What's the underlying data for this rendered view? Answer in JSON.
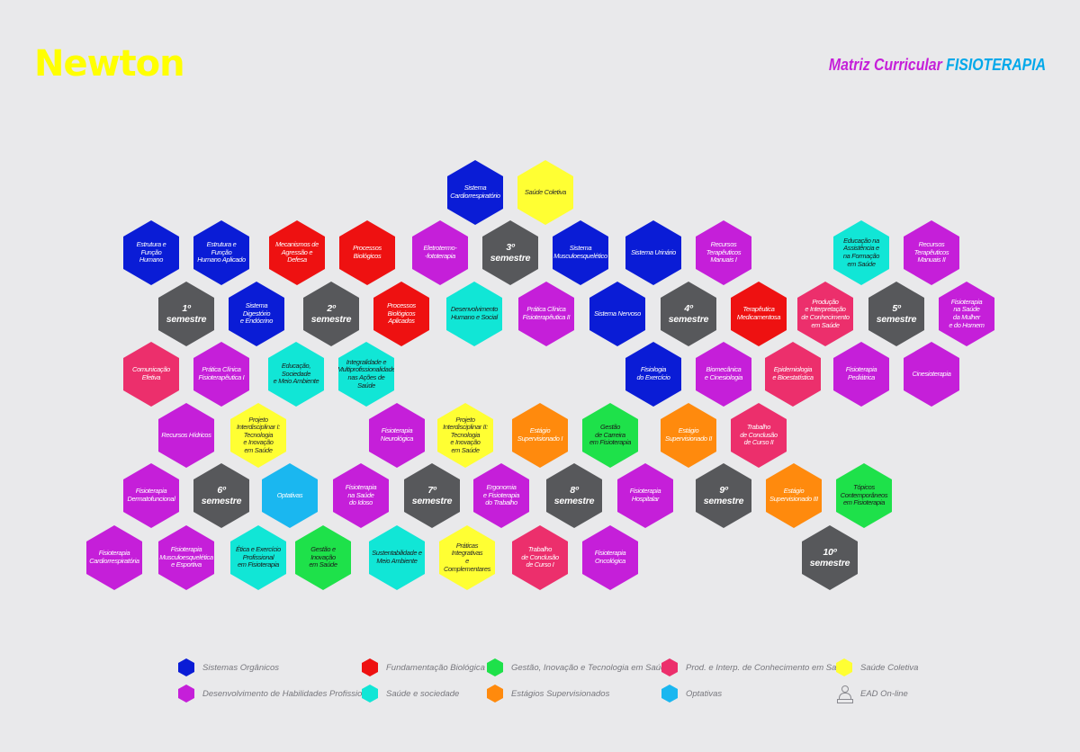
{
  "header": {
    "logo": "Newton",
    "title_prefix": "Matriz Curricular",
    "title_course": "FISIOTERAPIA"
  },
  "colors": {
    "organicos": "#0a1cd6",
    "fundamentacao": "#ee1111",
    "gestao": "#1ee14a",
    "producao": "#ec2f6c",
    "coletiva": "#ffff33",
    "habilidades": "#c51fd9",
    "sociedade": "#11e6d6",
    "estagios": "#ff8a0d",
    "optativas": "#1ab7f0",
    "semestre": "#57585b"
  },
  "hexes": [
    {
      "label": "Sistema\nCardiorrespiratório",
      "cat": "organicos",
      "sem": false
    },
    {
      "label": "Saúde Coletiva",
      "cat": "coletiva",
      "sem": false
    },
    {
      "label": "Estrutura e Função\nHumano",
      "cat": "organicos",
      "sem": false
    },
    {
      "label": "Estrutura e Função\nHumano Aplicado",
      "cat": "organicos",
      "sem": false
    },
    {
      "label": "Mecanismos de\nAgressão e Defesa",
      "cat": "fundamentacao",
      "sem": false
    },
    {
      "label": "Processos Biológicos",
      "cat": "fundamentacao",
      "sem": false
    },
    {
      "label": "Eletrotermo-\n-fototerapia",
      "cat": "habilidades",
      "sem": false
    },
    {
      "label": "3º semestre",
      "cat": "semestre",
      "sem": true
    },
    {
      "label": "Sistema\nMusculoesquelético",
      "cat": "organicos",
      "sem": false
    },
    {
      "label": "Sistema Urinário",
      "cat": "organicos",
      "sem": false
    },
    {
      "label": "Recursos\nTerapêuticos\nManuais I",
      "cat": "habilidades",
      "sem": false
    },
    {
      "label": "Educação na\nAssistência e\nna Formação\nem Saúde",
      "cat": "sociedade",
      "sem": false
    },
    {
      "label": "Recursos\nTerapêuticos\nManuais II",
      "cat": "habilidades",
      "sem": false
    },
    {
      "label": "1º semestre",
      "cat": "semestre",
      "sem": true
    },
    {
      "label": "Sistema Digestório\ne Endócrino",
      "cat": "organicos",
      "sem": false
    },
    {
      "label": "2º semestre",
      "cat": "semestre",
      "sem": true
    },
    {
      "label": "Processos Biológicos\nAplicados",
      "cat": "fundamentacao",
      "sem": false
    },
    {
      "label": "Desenvolvimento\nHumano e Social",
      "cat": "sociedade",
      "sem": false
    },
    {
      "label": "Prática Clínica\nFisioterapêutica II",
      "cat": "habilidades",
      "sem": false
    },
    {
      "label": "Sistema Nervoso",
      "cat": "organicos",
      "sem": false
    },
    {
      "label": "4º semestre",
      "cat": "semestre",
      "sem": true
    },
    {
      "label": "Terapêutica\nMedicamentosa",
      "cat": "fundamentacao",
      "sem": false
    },
    {
      "label": "Produção\ne Interpretação\nde Conhecimento\nem Saúde",
      "cat": "producao",
      "sem": false
    },
    {
      "label": "5º semestre",
      "cat": "semestre",
      "sem": true
    },
    {
      "label": "Fisioterapia\nna Saúde\nda Mulher\ne do Homem",
      "cat": "habilidades",
      "sem": false
    },
    {
      "label": "Comunicação\nEfetiva",
      "cat": "producao",
      "sem": false
    },
    {
      "label": "Prática Clínica\nFisioterapêutica I",
      "cat": "habilidades",
      "sem": false
    },
    {
      "label": "Educação, Sociedade\ne Meio Ambiente",
      "cat": "sociedade",
      "sem": false
    },
    {
      "label": "Integralidade e\nMultiprofissionalidade\nnas Ações de\nSaúde",
      "cat": "sociedade",
      "sem": false
    },
    {
      "label": "Fisiologia\ndo Exercício",
      "cat": "organicos",
      "sem": false
    },
    {
      "label": "Biomecânica\ne Cinesiologia",
      "cat": "habilidades",
      "sem": false
    },
    {
      "label": "Epidemiologia\ne Bioestatística",
      "cat": "producao",
      "sem": false
    },
    {
      "label": "Fisioterapia\nPediátrica",
      "cat": "habilidades",
      "sem": false
    },
    {
      "label": "Cinesioterapia",
      "cat": "habilidades",
      "sem": false
    },
    {
      "label": "Recursos Hídricos",
      "cat": "habilidades",
      "sem": false
    },
    {
      "label": "Projeto\nInterdisciplinar I:\nTecnologia\ne Inovação\nem Saúde",
      "cat": "coletiva",
      "sem": false
    },
    {
      "label": "Fisioterapia\nNeurológica",
      "cat": "habilidades",
      "sem": false
    },
    {
      "label": "Projeto\nInterdisciplinar II:\nTecnologia\ne Inovação\nem Saúde",
      "cat": "coletiva",
      "sem": false
    },
    {
      "label": "Estágio\nSupervisionado I",
      "cat": "estagios",
      "sem": false
    },
    {
      "label": "Gestão\nde Carreira\nem Fisioterapia",
      "cat": "gestao",
      "sem": false
    },
    {
      "label": "Estágio\nSupervisionado II",
      "cat": "estagios",
      "sem": false
    },
    {
      "label": "Trabalho\nde Conclusão\nde Curso II",
      "cat": "producao",
      "sem": false
    },
    {
      "label": "Fisioterapia\nDermatofuncional",
      "cat": "habilidades",
      "sem": false
    },
    {
      "label": "6º semestre",
      "cat": "semestre",
      "sem": true
    },
    {
      "label": "Optativas",
      "cat": "optativas",
      "sem": false
    },
    {
      "label": "Fisioterapia\nna Saúde\ndo Idoso",
      "cat": "habilidades",
      "sem": false
    },
    {
      "label": "7º semestre",
      "cat": "semestre",
      "sem": true
    },
    {
      "label": "Ergonomia\ne Fisioterapia\ndo Trabalho",
      "cat": "habilidades",
      "sem": false
    },
    {
      "label": "8º semestre",
      "cat": "semestre",
      "sem": true
    },
    {
      "label": "Fisioterapia\nHospitalar",
      "cat": "habilidades",
      "sem": false
    },
    {
      "label": "9º semestre",
      "cat": "semestre",
      "sem": true
    },
    {
      "label": "Estágio\nSupervisionado III",
      "cat": "estagios",
      "sem": false
    },
    {
      "label": "Tópicos\nContemporâneos\nem Fisioterapia",
      "cat": "gestao",
      "sem": false
    },
    {
      "label": "Fisioterapia\nCardiorrespiratória",
      "cat": "habilidades",
      "sem": false
    },
    {
      "label": "Fisioterapia\nMusculoesquelética\ne Esportiva",
      "cat": "habilidades",
      "sem": false
    },
    {
      "label": "Ética e Exercício\nProfissional\nem Fisioterapia",
      "cat": "sociedade",
      "sem": false
    },
    {
      "label": "Gestão e\nInovação\nem Saúde",
      "cat": "gestao",
      "sem": false
    },
    {
      "label": "Sustentabilidade e\nMeio Ambiente",
      "cat": "sociedade",
      "sem": false
    },
    {
      "label": "Práticas Integrativas\ne Complementares",
      "cat": "coletiva",
      "sem": false
    },
    {
      "label": "Trabalho\nde Conclusão\nde Curso I",
      "cat": "producao",
      "sem": false
    },
    {
      "label": "Fisioterapia\nOncológica",
      "cat": "habilidades",
      "sem": false
    },
    {
      "label": "10º semestre",
      "cat": "semestre",
      "sem": true
    }
  ],
  "legend": [
    {
      "label": "Sistemas Orgânicos",
      "cat": "organicos"
    },
    {
      "label": "Fundamentação Biológica",
      "cat": "fundamentacao"
    },
    {
      "label": "Gestão, Inovação e Tecnologia em Saúde",
      "cat": "gestao"
    },
    {
      "label": "Prod. e Interp. de Conhecimento em Saúde",
      "cat": "producao"
    },
    {
      "label": "Saúde Coletiva",
      "cat": "coletiva"
    },
    {
      "label": "Desenvolvimento de Habilidades Profissionais",
      "cat": "habilidades"
    },
    {
      "label": "Saúde e sociedade",
      "cat": "sociedade"
    },
    {
      "label": "Estágios Supervisionados",
      "cat": "estagios"
    },
    {
      "label": "Optativas",
      "cat": "optativas"
    },
    {
      "label": "EAD On-line",
      "cat": "ead"
    }
  ]
}
